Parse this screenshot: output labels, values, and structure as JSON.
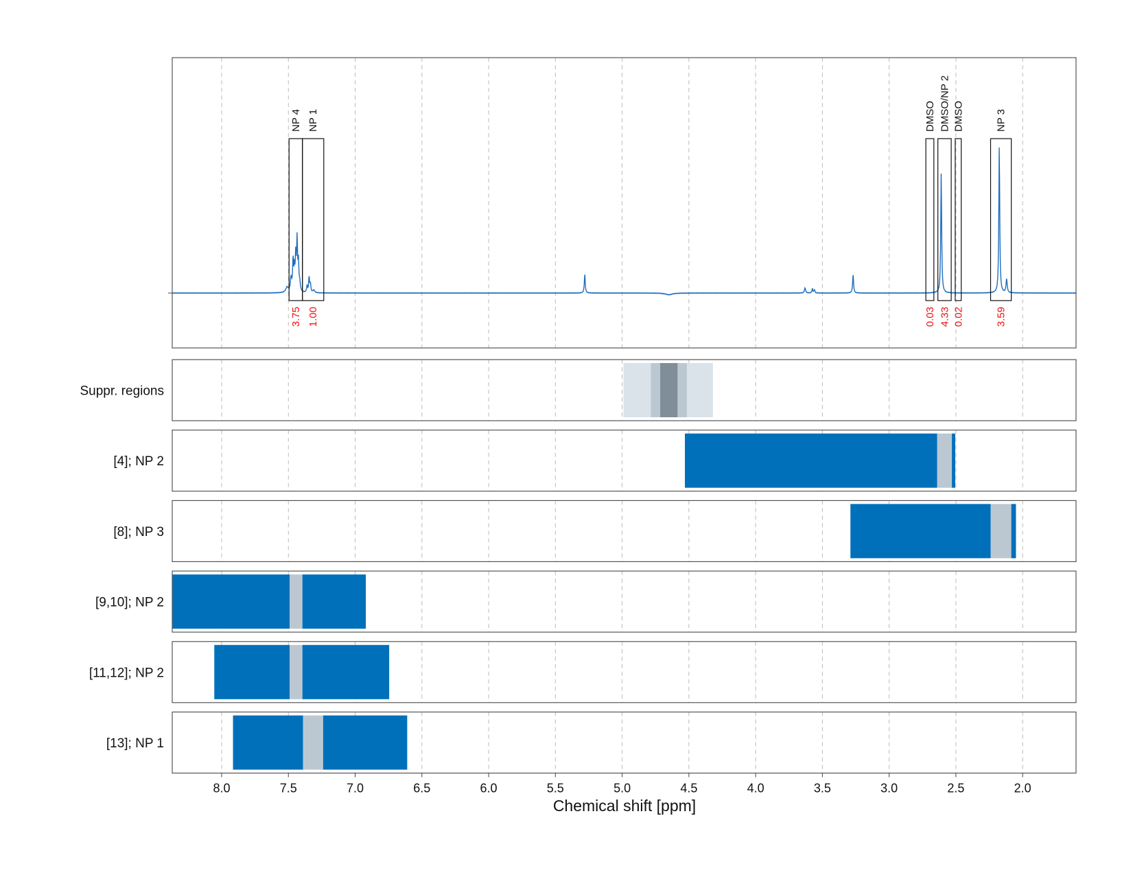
{
  "chart_data": {
    "type": "nmr-spectrum-with-region-bars",
    "xlabel": "Chemical shift [ppm]",
    "xlim": [
      8.37,
      1.6
    ],
    "reversed_x": true,
    "grid": true,
    "x_ticks": [
      8.0,
      7.5,
      7.0,
      6.5,
      6.0,
      5.5,
      5.0,
      4.5,
      4.0,
      3.5,
      3.0,
      2.5,
      2.0
    ],
    "x_tick_labels": [
      "8.0",
      "7.5",
      "7.0",
      "6.5",
      "6.0",
      "5.5",
      "5.0",
      "4.5",
      "4.0",
      "3.5",
      "3.0",
      "2.5",
      "2.0"
    ],
    "spectrum": {
      "color": "#1f6fbf",
      "baseline": 0,
      "peaks": [
        {
          "ppm": 7.51,
          "height": 0.03,
          "width": 0.012
        },
        {
          "ppm": 7.48,
          "height": 0.08,
          "width": 0.006
        },
        {
          "ppm": 7.465,
          "height": 0.18,
          "width": 0.004
        },
        {
          "ppm": 7.455,
          "height": 0.13,
          "width": 0.004
        },
        {
          "ppm": 7.445,
          "height": 0.2,
          "width": 0.004
        },
        {
          "ppm": 7.435,
          "height": 0.29,
          "width": 0.004
        },
        {
          "ppm": 7.425,
          "height": 0.16,
          "width": 0.004
        },
        {
          "ppm": 7.415,
          "height": 0.05,
          "width": 0.005
        },
        {
          "ppm": 7.36,
          "height": 0.04,
          "width": 0.004
        },
        {
          "ppm": 7.345,
          "height": 0.09,
          "width": 0.004
        },
        {
          "ppm": 7.335,
          "height": 0.05,
          "width": 0.004
        },
        {
          "ppm": 7.31,
          "height": 0.015,
          "width": 0.008
        },
        {
          "ppm": 5.28,
          "height": 0.11,
          "width": 0.004
        },
        {
          "ppm": 4.65,
          "height": -0.01,
          "width": 0.03
        },
        {
          "ppm": 3.63,
          "height": 0.03,
          "width": 0.005
        },
        {
          "ppm": 3.575,
          "height": 0.025,
          "width": 0.004
        },
        {
          "ppm": 3.56,
          "height": 0.02,
          "width": 0.004
        },
        {
          "ppm": 3.27,
          "height": 0.11,
          "width": 0.004
        },
        {
          "ppm": 2.61,
          "height": 0.7,
          "width": 0.004
        },
        {
          "ppm": 2.175,
          "height": 0.86,
          "width": 0.004
        },
        {
          "ppm": 2.12,
          "height": 0.08,
          "width": 0.005
        }
      ]
    },
    "peak_boxes": [
      {
        "label": "NP 4",
        "integral": "3.75",
        "from": 7.495,
        "to": 7.395,
        "top": 0.9
      },
      {
        "label": "NP 1",
        "integral": "1.00",
        "from": 7.395,
        "to": 7.235,
        "top": 0.9
      },
      {
        "label": "DMSO",
        "integral": "0.03",
        "from": 2.725,
        "to": 2.665,
        "top": 0.9
      },
      {
        "label": "DMSO/NP 2",
        "integral": "4.33",
        "from": 2.635,
        "to": 2.535,
        "top": 0.9
      },
      {
        "label": "DMSO",
        "integral": "0.02",
        "from": 2.505,
        "to": 2.46,
        "top": 0.9
      },
      {
        "label": "NP 3",
        "integral": "3.59",
        "from": 2.24,
        "to": 2.085,
        "top": 0.9
      }
    ],
    "region_rows": [
      {
        "label": "Suppr. regions",
        "segments": [
          {
            "from": 4.99,
            "to": 4.32,
            "color": "#dbe3ea"
          },
          {
            "from": 4.785,
            "to": 4.515,
            "color": "#bcc8d1"
          },
          {
            "from": 4.715,
            "to": 4.585,
            "color": "#7f8e99"
          }
        ]
      },
      {
        "label": "[4]; NP 2",
        "segments": [
          {
            "from": 4.53,
            "to": 2.64,
            "color": "#0070bb"
          },
          {
            "from": 2.64,
            "to": 2.53,
            "color": "#bcc8d1"
          },
          {
            "from": 2.53,
            "to": 2.505,
            "color": "#0070bb"
          }
        ]
      },
      {
        "label": "[8]; NP 3",
        "segments": [
          {
            "from": 3.29,
            "to": 2.24,
            "color": "#0070bb"
          },
          {
            "from": 2.24,
            "to": 2.085,
            "color": "#bcc8d1"
          },
          {
            "from": 2.085,
            "to": 2.05,
            "color": "#0070bb"
          }
        ]
      },
      {
        "label": "[9,10]; NP 2",
        "segments": [
          {
            "from": 8.37,
            "to": 7.49,
            "color": "#0070bb"
          },
          {
            "from": 7.49,
            "to": 7.395,
            "color": "#bcc8d1"
          },
          {
            "from": 7.395,
            "to": 6.92,
            "color": "#0070bb"
          }
        ]
      },
      {
        "label": "[11,12]; NP 2",
        "segments": [
          {
            "from": 8.055,
            "to": 7.49,
            "color": "#0070bb"
          },
          {
            "from": 7.49,
            "to": 7.395,
            "color": "#bcc8d1"
          },
          {
            "from": 7.395,
            "to": 6.745,
            "color": "#0070bb"
          }
        ]
      },
      {
        "label": "[13]; NP 1",
        "segments": [
          {
            "from": 7.915,
            "to": 7.39,
            "color": "#0070bb"
          },
          {
            "from": 7.39,
            "to": 7.24,
            "color": "#bcc8d1"
          },
          {
            "from": 7.24,
            "to": 6.61,
            "color": "#0070bb"
          }
        ]
      }
    ]
  }
}
